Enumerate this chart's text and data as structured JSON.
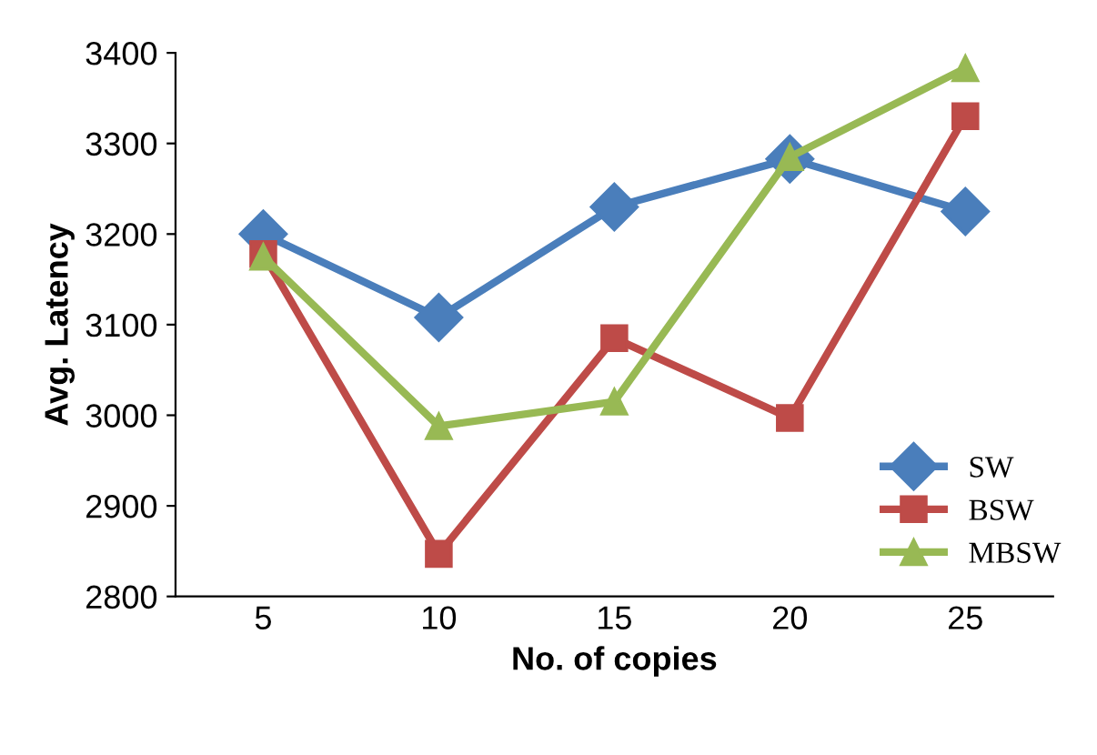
{
  "chart_data": {
    "type": "line",
    "xlabel": "No. of copies",
    "ylabel": "Avg. Latency",
    "categories": [
      "5",
      "10",
      "15",
      "20",
      "25"
    ],
    "series": [
      {
        "name": "SW",
        "color": "#4a7ebb",
        "values": [
          3200,
          3108,
          3230,
          3283,
          3225
        ],
        "marker": "diamond"
      },
      {
        "name": "BSW",
        "color": "#be4b48",
        "values": [
          3178,
          2847,
          3085,
          2997,
          3330
        ],
        "marker": "square"
      },
      {
        "name": "MBSW",
        "color": "#98b954",
        "values": [
          3175,
          2988,
          3015,
          3285,
          3383
        ],
        "marker": "triangle"
      }
    ],
    "ylim": [
      2800,
      3400
    ],
    "yticks": [
      2800,
      2900,
      3000,
      3100,
      3200,
      3300,
      3400
    ],
    "grid": false,
    "legend": "bottom right",
    "line_style": "solid"
  }
}
